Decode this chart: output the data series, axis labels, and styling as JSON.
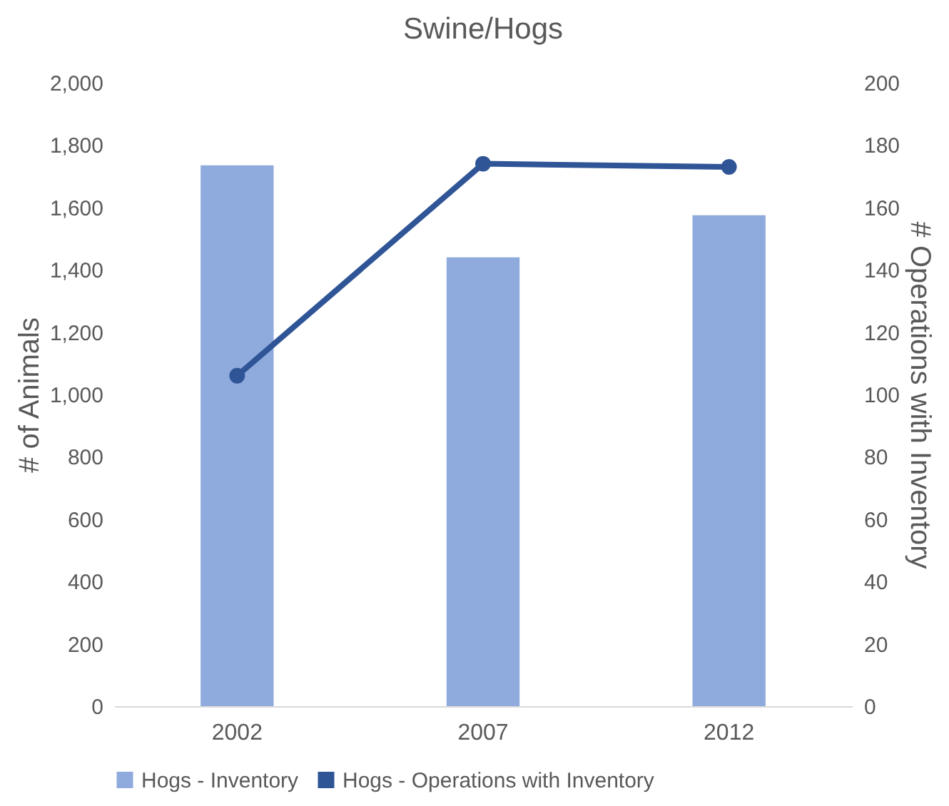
{
  "chart_data": {
    "type": "bar",
    "title": "Swine/Hogs",
    "categories": [
      "2002",
      "2007",
      "2012"
    ],
    "ylabel": "# of Animals",
    "y2label": "# Operations with Inventory",
    "series": [
      {
        "name": "Hogs - Inventory",
        "color": "#8faadc",
        "values": [
          1735,
          1440,
          1575
        ]
      },
      {
        "name": "Hogs - Operations with Inventory",
        "type": "line",
        "axis": "y2",
        "color": "#2f5597",
        "values": [
          106,
          174,
          173
        ]
      }
    ],
    "ylim": [
      0,
      2000
    ],
    "yticks": [
      0,
      {
        "value": 200,
        "label": "200"
      },
      {
        "value": 400,
        "label": "400"
      },
      {
        "value": 600,
        "label": "600"
      },
      {
        "value": 800,
        "label": "800"
      },
      {
        "value": 1000,
        "label": "1,000"
      },
      {
        "value": 1200,
        "label": "1,200"
      },
      {
        "value": 1400,
        "label": "1,400"
      },
      {
        "value": 1600,
        "label": "1,600"
      },
      {
        "value": 1800,
        "label": "1,800"
      },
      {
        "value": 2000,
        "label": "2,000"
      }
    ],
    "y2lim": [
      0,
      200
    ],
    "y2ticks": [
      0,
      20,
      40,
      60,
      80,
      100,
      120,
      140,
      160,
      180,
      200
    ],
    "grid": false,
    "legend": "bottom",
    "marker": "circle"
  }
}
